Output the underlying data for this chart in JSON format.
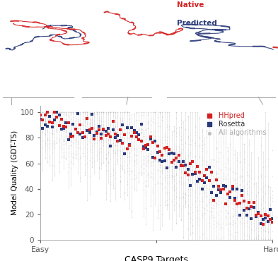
{
  "xlabel": "CASP9 Targets",
  "ylabel": "Model Quality (GDT-TS)",
  "xlim": [
    0,
    100
  ],
  "ylim": [
    0,
    105
  ],
  "yticks": [
    0,
    20,
    40,
    60,
    80,
    100
  ],
  "background_color": "#ffffff",
  "hhpred_color": "#d42020",
  "rosetta_color": "#2a3a7a",
  "all_alg_color": "#c0c0c0",
  "native_label_color": "#d42020",
  "predicted_label_color": "#2a3a7a",
  "n_targets": 100,
  "seed": 42,
  "legend_hhpred": "HHpred",
  "legend_rosetta": "Rosetta",
  "legend_all": "All algorithms"
}
